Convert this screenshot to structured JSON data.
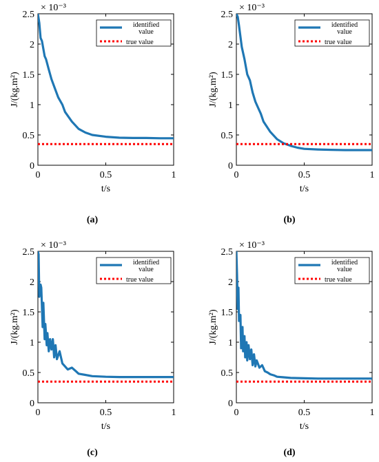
{
  "figure": {
    "captions": [
      "(a)",
      "(b)",
      "(c)",
      "(d)"
    ]
  },
  "chart_data": [
    {
      "type": "line",
      "panel": "a",
      "xlabel": "t/s",
      "ylabel": "J/(kg.m²)",
      "y_exponent_label": "× 10⁻³",
      "xlim": [
        0,
        1
      ],
      "ylim": [
        0,
        2.5
      ],
      "xticks": [
        "0",
        "0.5",
        "1"
      ],
      "yticks": [
        "0",
        "0.5",
        "1",
        "1.5",
        "2",
        "2.5"
      ],
      "legend_position": "top-right",
      "series": [
        {
          "name": "identified value",
          "color": "#1f77b4",
          "style": "solid",
          "x": [
            0,
            0.01,
            0.02,
            0.03,
            0.05,
            0.06,
            0.08,
            0.1,
            0.12,
            0.15,
            0.18,
            0.2,
            0.25,
            0.3,
            0.35,
            0.4,
            0.5,
            0.6,
            0.7,
            0.8,
            0.9,
            1.0
          ],
          "y": [
            2.5,
            2.35,
            2.1,
            2.05,
            1.8,
            1.75,
            1.58,
            1.42,
            1.3,
            1.12,
            1.0,
            0.88,
            0.72,
            0.6,
            0.54,
            0.5,
            0.47,
            0.455,
            0.45,
            0.45,
            0.445,
            0.445
          ]
        },
        {
          "name": "true value",
          "color": "#ff0000",
          "style": "dotted",
          "x": [
            0,
            1
          ],
          "y": [
            0.35,
            0.35
          ]
        }
      ]
    },
    {
      "type": "line",
      "panel": "b",
      "xlabel": "t/s",
      "ylabel": "J/(kg.m²)",
      "y_exponent_label": "× 10⁻³",
      "xlim": [
        0,
        1
      ],
      "ylim": [
        0,
        2.5
      ],
      "xticks": [
        "0",
        "0.5",
        "1"
      ],
      "yticks": [
        "0",
        "0.5",
        "1",
        "1.5",
        "2",
        "2.5"
      ],
      "legend_position": "top-right",
      "series": [
        {
          "name": "identified value",
          "color": "#1f77b4",
          "style": "solid",
          "x": [
            0,
            0.01,
            0.02,
            0.04,
            0.06,
            0.08,
            0.1,
            0.12,
            0.14,
            0.16,
            0.18,
            0.2,
            0.25,
            0.3,
            0.35,
            0.4,
            0.45,
            0.5,
            0.6,
            0.7,
            0.8,
            0.9,
            1.0
          ],
          "y": [
            2.5,
            2.45,
            2.3,
            1.95,
            1.75,
            1.5,
            1.4,
            1.2,
            1.05,
            0.95,
            0.85,
            0.72,
            0.55,
            0.43,
            0.36,
            0.32,
            0.29,
            0.27,
            0.26,
            0.255,
            0.25,
            0.25,
            0.25
          ]
        },
        {
          "name": "true value",
          "color": "#ff0000",
          "style": "dotted",
          "x": [
            0,
            1
          ],
          "y": [
            0.35,
            0.35
          ]
        }
      ]
    },
    {
      "type": "line",
      "panel": "c",
      "xlabel": "t/s",
      "ylabel": "J/(kg.m²)",
      "y_exponent_label": "× 10⁻³",
      "xlim": [
        0,
        1
      ],
      "ylim": [
        0,
        2.5
      ],
      "xticks": [
        "0",
        "0.5",
        "1"
      ],
      "yticks": [
        "0",
        "0.5",
        "1",
        "1.5",
        "2",
        "2.5"
      ],
      "legend_position": "top-right",
      "series": [
        {
          "name": "identified value",
          "color": "#1f77b4",
          "style": "solid",
          "x": [
            0,
            0.005,
            0.01,
            0.02,
            0.025,
            0.035,
            0.04,
            0.05,
            0.055,
            0.065,
            0.07,
            0.08,
            0.09,
            0.1,
            0.11,
            0.12,
            0.13,
            0.14,
            0.16,
            0.18,
            0.2,
            0.22,
            0.25,
            0.28,
            0.3,
            0.35,
            0.4,
            0.5,
            0.6,
            0.7,
            0.8,
            0.9,
            1.0
          ],
          "y": [
            2.5,
            2.45,
            1.75,
            1.95,
            1.9,
            1.25,
            1.65,
            1.05,
            1.3,
            0.95,
            1.15,
            0.85,
            1.05,
            0.88,
            1.05,
            0.75,
            0.95,
            0.72,
            0.85,
            0.65,
            0.6,
            0.55,
            0.58,
            0.52,
            0.48,
            0.46,
            0.44,
            0.43,
            0.425,
            0.425,
            0.425,
            0.425,
            0.425
          ]
        },
        {
          "name": "true value",
          "color": "#ff0000",
          "style": "dotted",
          "x": [
            0,
            1
          ],
          "y": [
            0.35,
            0.35
          ]
        }
      ]
    },
    {
      "type": "line",
      "panel": "d",
      "xlabel": "t/s",
      "ylabel": "J/(kg.m²)",
      "y_exponent_label": "× 10⁻³",
      "xlim": [
        0,
        1
      ],
      "ylim": [
        0,
        2.5
      ],
      "xticks": [
        "0",
        "0.5",
        "1"
      ],
      "yticks": [
        "0",
        "0.5",
        "1",
        "1.5",
        "2",
        "2.5"
      ],
      "legend_position": "top-right",
      "series": [
        {
          "name": "identified value",
          "color": "#1f77b4",
          "style": "solid",
          "x": [
            0,
            0.005,
            0.01,
            0.015,
            0.02,
            0.03,
            0.035,
            0.045,
            0.05,
            0.06,
            0.065,
            0.075,
            0.08,
            0.09,
            0.1,
            0.11,
            0.12,
            0.13,
            0.14,
            0.15,
            0.17,
            0.19,
            0.21,
            0.23,
            0.25,
            0.28,
            0.3,
            0.35,
            0.4,
            0.5,
            0.6,
            0.7,
            0.8,
            0.9,
            1.0
          ],
          "y": [
            2.5,
            2.1,
            1.55,
            1.9,
            1.35,
            1.45,
            0.9,
            1.25,
            0.85,
            1.1,
            0.75,
            1.0,
            0.7,
            0.95,
            0.72,
            0.88,
            0.62,
            0.8,
            0.6,
            0.7,
            0.58,
            0.62,
            0.52,
            0.5,
            0.47,
            0.45,
            0.43,
            0.42,
            0.41,
            0.405,
            0.4,
            0.4,
            0.4,
            0.4,
            0.4
          ]
        },
        {
          "name": "true value",
          "color": "#ff0000",
          "style": "dotted",
          "x": [
            0,
            1
          ],
          "y": [
            0.35,
            0.35
          ]
        }
      ]
    }
  ]
}
